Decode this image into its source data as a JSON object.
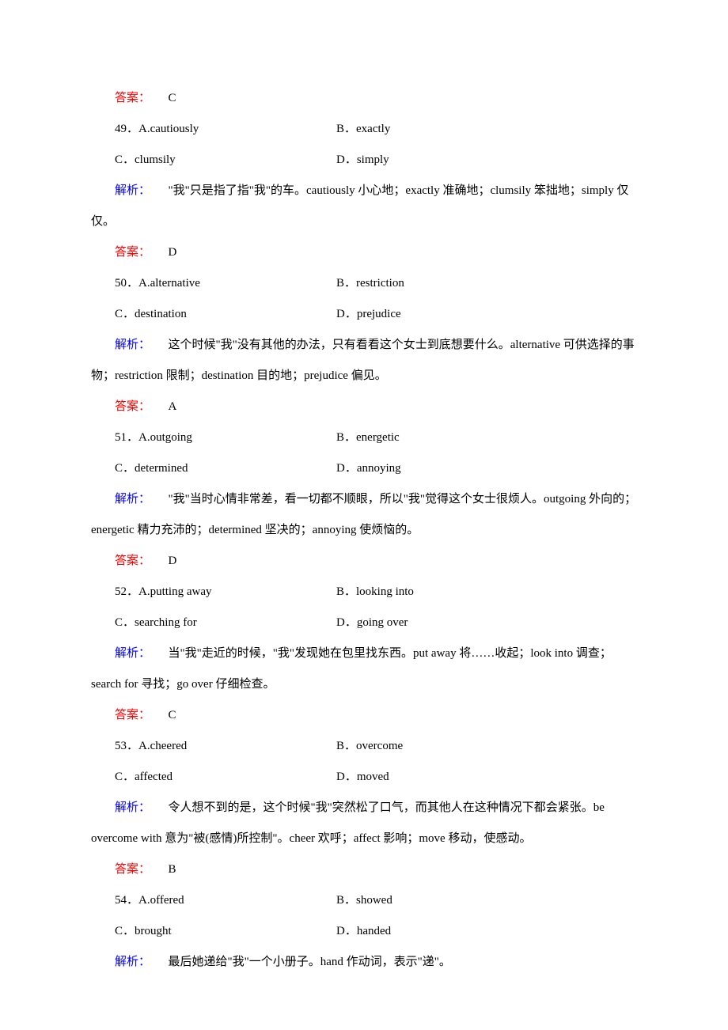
{
  "labels": {
    "answer": "答案：",
    "explain": "解析："
  },
  "font": {
    "family": "SimSun",
    "size_pt": 11,
    "line_height": 2.6
  },
  "colors": {
    "background": "#ffffff",
    "text": "#000000",
    "answer_label": "#ff0000",
    "explain_label": "#0000ff"
  },
  "items": [
    {
      "pre_answer": "C",
      "number": "49",
      "options": {
        "A": "A.cautiously",
        "B": "B．exactly",
        "C": "C．clumsily",
        "D": "D．simply"
      },
      "explain": "\"我\"只是指了指\"我\"的车。cautiously 小心地；exactly 准确地；clumsily 笨拙地；simply 仅仅。",
      "answer": "D"
    },
    {
      "number": "50",
      "options": {
        "A": "A.alternative",
        "B": "B．restriction",
        "C": "C．destination",
        "D": "D．prejudice"
      },
      "explain": "这个时候\"我\"没有其他的办法，只有看看这个女士到底想要什么。alternative 可供选择的事物；restriction 限制；destination 目的地；prejudice 偏见。",
      "answer": "A"
    },
    {
      "number": "51",
      "options": {
        "A": "A.outgoing",
        "B": "B．energetic",
        "C": "C．determined",
        "D": "D．annoying"
      },
      "explain": "\"我\"当时心情非常差，看一切都不顺眼，所以\"我\"觉得这个女士很烦人。outgoing 外向的；energetic 精力充沛的；determined 坚决的；annoying 使烦恼的。",
      "answer": "D"
    },
    {
      "number": "52",
      "options": {
        "A": "A.putting away",
        "B": "B．looking into",
        "C": "C．searching for",
        "D": "D．going over"
      },
      "explain": "当\"我\"走近的时候，\"我\"发现她在包里找东西。put away 将……收起；look into 调查；search for 寻找；go over 仔细检查。",
      "answer": "C"
    },
    {
      "number": "53",
      "options": {
        "A": "A.cheered",
        "B": "B．overcome",
        "C": "C．affected",
        "D": "D．moved"
      },
      "explain": "令人想不到的是，这个时候\"我\"突然松了口气，而其他人在这种情况下都会紧张。be overcome with 意为\"被(感情)所控制\"。cheer 欢呼；affect 影响；move 移动，使感动。",
      "answer": "B"
    },
    {
      "number": "54",
      "options": {
        "A": "A.offered",
        "B": "B．showed",
        "C": "C．brought",
        "D": "D．handed"
      },
      "explain": "最后她递给\"我\"一个小册子。hand 作动词，表示\"递\"。",
      "answer": null
    }
  ]
}
